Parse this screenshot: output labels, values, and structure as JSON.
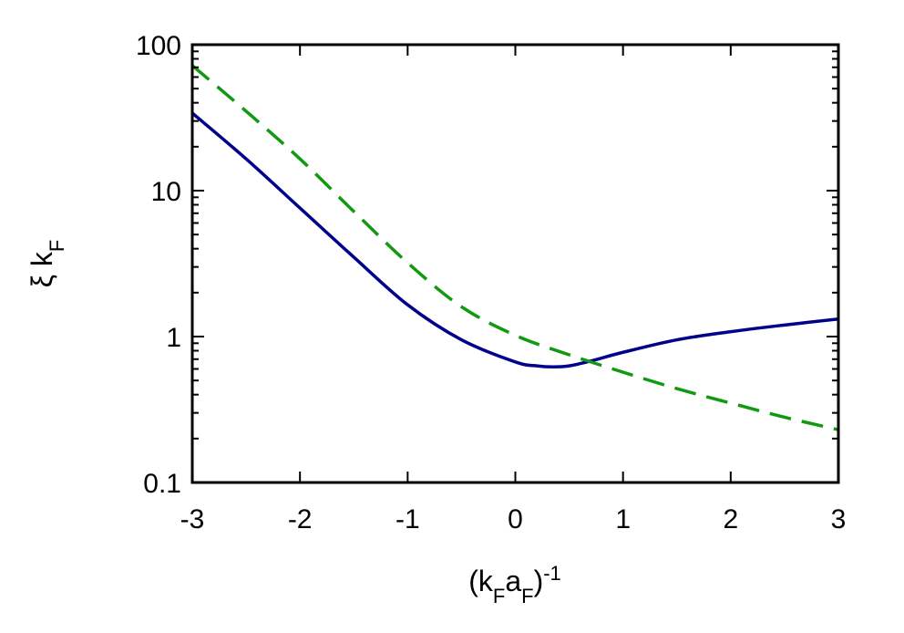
{
  "chart_data": {
    "type": "line",
    "xlabel": "(k_F a_F)^-1",
    "ylabel": "ξ k_F",
    "xlim": [
      -3,
      3
    ],
    "ylim": [
      0.1,
      100
    ],
    "yscale": "log",
    "x_ticks": [
      -3,
      -2,
      -1,
      0,
      1,
      2,
      3
    ],
    "x_tick_labels": [
      "-3",
      "-2",
      "-1",
      "0",
      "1",
      "2",
      "3"
    ],
    "y_ticks": [
      0.1,
      1,
      10,
      100
    ],
    "y_tick_labels": [
      "0.1",
      "1",
      "10",
      "100"
    ],
    "grid": false,
    "legend": "none",
    "series": [
      {
        "color": "#00008b",
        "style": "solid",
        "x": [
          -3,
          -2.5,
          -2,
          -1.5,
          -1,
          -0.5,
          0,
          0.2,
          0.35,
          0.5,
          0.7,
          1,
          1.5,
          2,
          2.5,
          3
        ],
        "y": [
          34,
          16.5,
          7.6,
          3.5,
          1.65,
          0.95,
          0.67,
          0.63,
          0.62,
          0.63,
          0.68,
          0.78,
          0.95,
          1.08,
          1.2,
          1.32
        ]
      },
      {
        "color": "#119911",
        "style": "dashed",
        "x": [
          -3,
          -2.5,
          -2,
          -1.5,
          -1,
          -0.5,
          0,
          0.5,
          1,
          1.5,
          2,
          2.5,
          3
        ],
        "y": [
          72,
          35,
          16.5,
          7.2,
          3.2,
          1.6,
          1.02,
          0.75,
          0.57,
          0.44,
          0.35,
          0.28,
          0.23
        ]
      }
    ]
  }
}
